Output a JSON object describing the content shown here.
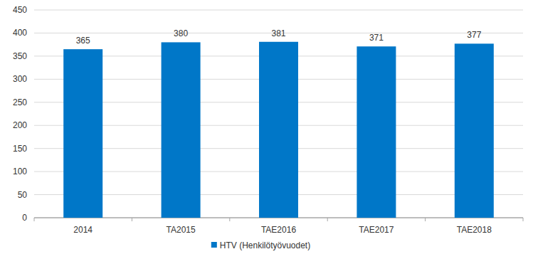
{
  "chart_data": {
    "type": "bar",
    "categories": [
      "2014",
      "TA2015",
      "TAE2016",
      "TAE2017",
      "TAE2018"
    ],
    "series": [
      {
        "name": "HTV (Henkilötyövuodet)",
        "color": "#0077c8",
        "values": [
          365,
          380,
          381,
          371,
          377
        ]
      }
    ],
    "ylim": [
      0,
      450
    ],
    "yticks": [
      0,
      50,
      100,
      150,
      200,
      250,
      300,
      350,
      400,
      450
    ],
    "grid": true,
    "data_labels": true,
    "legend": "bottom"
  }
}
